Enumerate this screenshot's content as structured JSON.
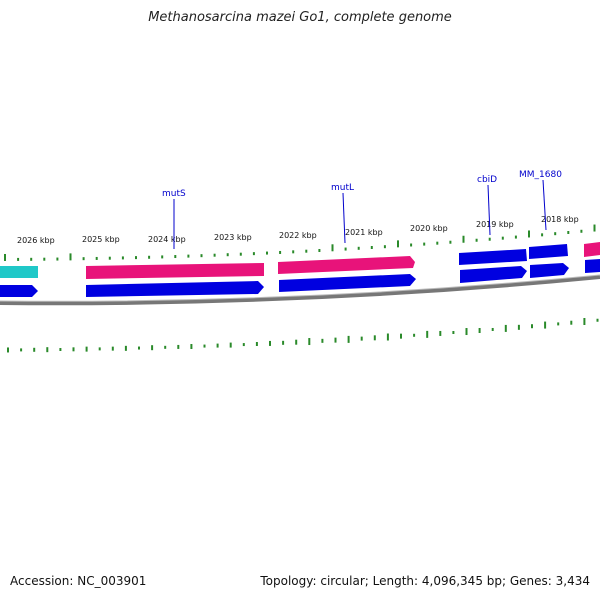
{
  "title": "Methanosarcina mazei Go1, complete genome",
  "footer": {
    "accession": "Accession: NC_003901",
    "stats": "Topology: circular; Length: 4,096,345 bp; Genes: 3,434"
  },
  "colors": {
    "forward_cds": "#e8137a",
    "reverse_cds": "#0000e0",
    "rna_gene": "#20c8c8",
    "backbone": "#777777",
    "gc_ticks": "#2a8a2a",
    "gene_label": "#0000cc"
  },
  "kbp_labels": [
    {
      "text": "2026 kbp"
    },
    {
      "text": "2025 kbp"
    },
    {
      "text": "2024 kbp"
    },
    {
      "text": "2023 kbp"
    },
    {
      "text": "2022 kbp"
    },
    {
      "text": "2021 kbp"
    },
    {
      "text": "2020 kbp"
    },
    {
      "text": "2019 kbp"
    },
    {
      "text": "2018 kbp"
    }
  ],
  "gene_labels": [
    {
      "text": "mutS"
    },
    {
      "text": "mutL"
    },
    {
      "text": "cbiD"
    },
    {
      "text": "MM_1680"
    }
  ]
}
